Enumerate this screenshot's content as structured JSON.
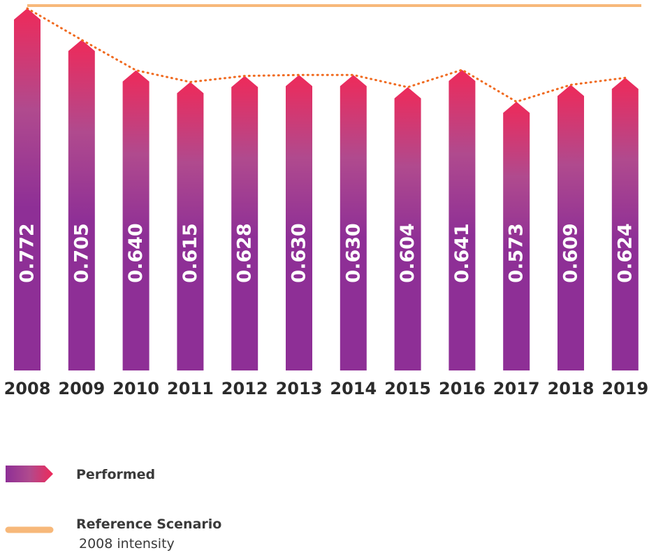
{
  "chart_data": {
    "type": "bar",
    "categories": [
      "2008",
      "2009",
      "2010",
      "2011",
      "2012",
      "2013",
      "2014",
      "2015",
      "2016",
      "2017",
      "2018",
      "2019"
    ],
    "series": [
      {
        "name": "Performed",
        "values": [
          0.772,
          0.705,
          0.64,
          0.615,
          0.628,
          0.63,
          0.63,
          0.604,
          0.641,
          0.573,
          0.609,
          0.624
        ]
      }
    ],
    "value_labels": [
      "0.772",
      "0.705",
      "0.640",
      "0.615",
      "0.628",
      "0.630",
      "0.630",
      "0.604",
      "0.641",
      "0.573",
      "0.609",
      "0.624"
    ],
    "reference_line": {
      "value": 0.772
    },
    "legend": {
      "placement": "bottom-left",
      "items": [
        {
          "label": "Performed",
          "sublabel": ""
        },
        {
          "label": "Reference Scenario",
          "sublabel": "2008 intensity"
        }
      ]
    },
    "ylim": [
      0,
      0.772
    ],
    "grid": false,
    "colors": {
      "bar_top": "#ee2a5a",
      "bar_mid": "#b04a8e",
      "bar_bottom": "#8e2f96",
      "trend_line": "#f06a1f",
      "reference": "#f7b87a",
      "text": "#2b2b2b"
    }
  }
}
